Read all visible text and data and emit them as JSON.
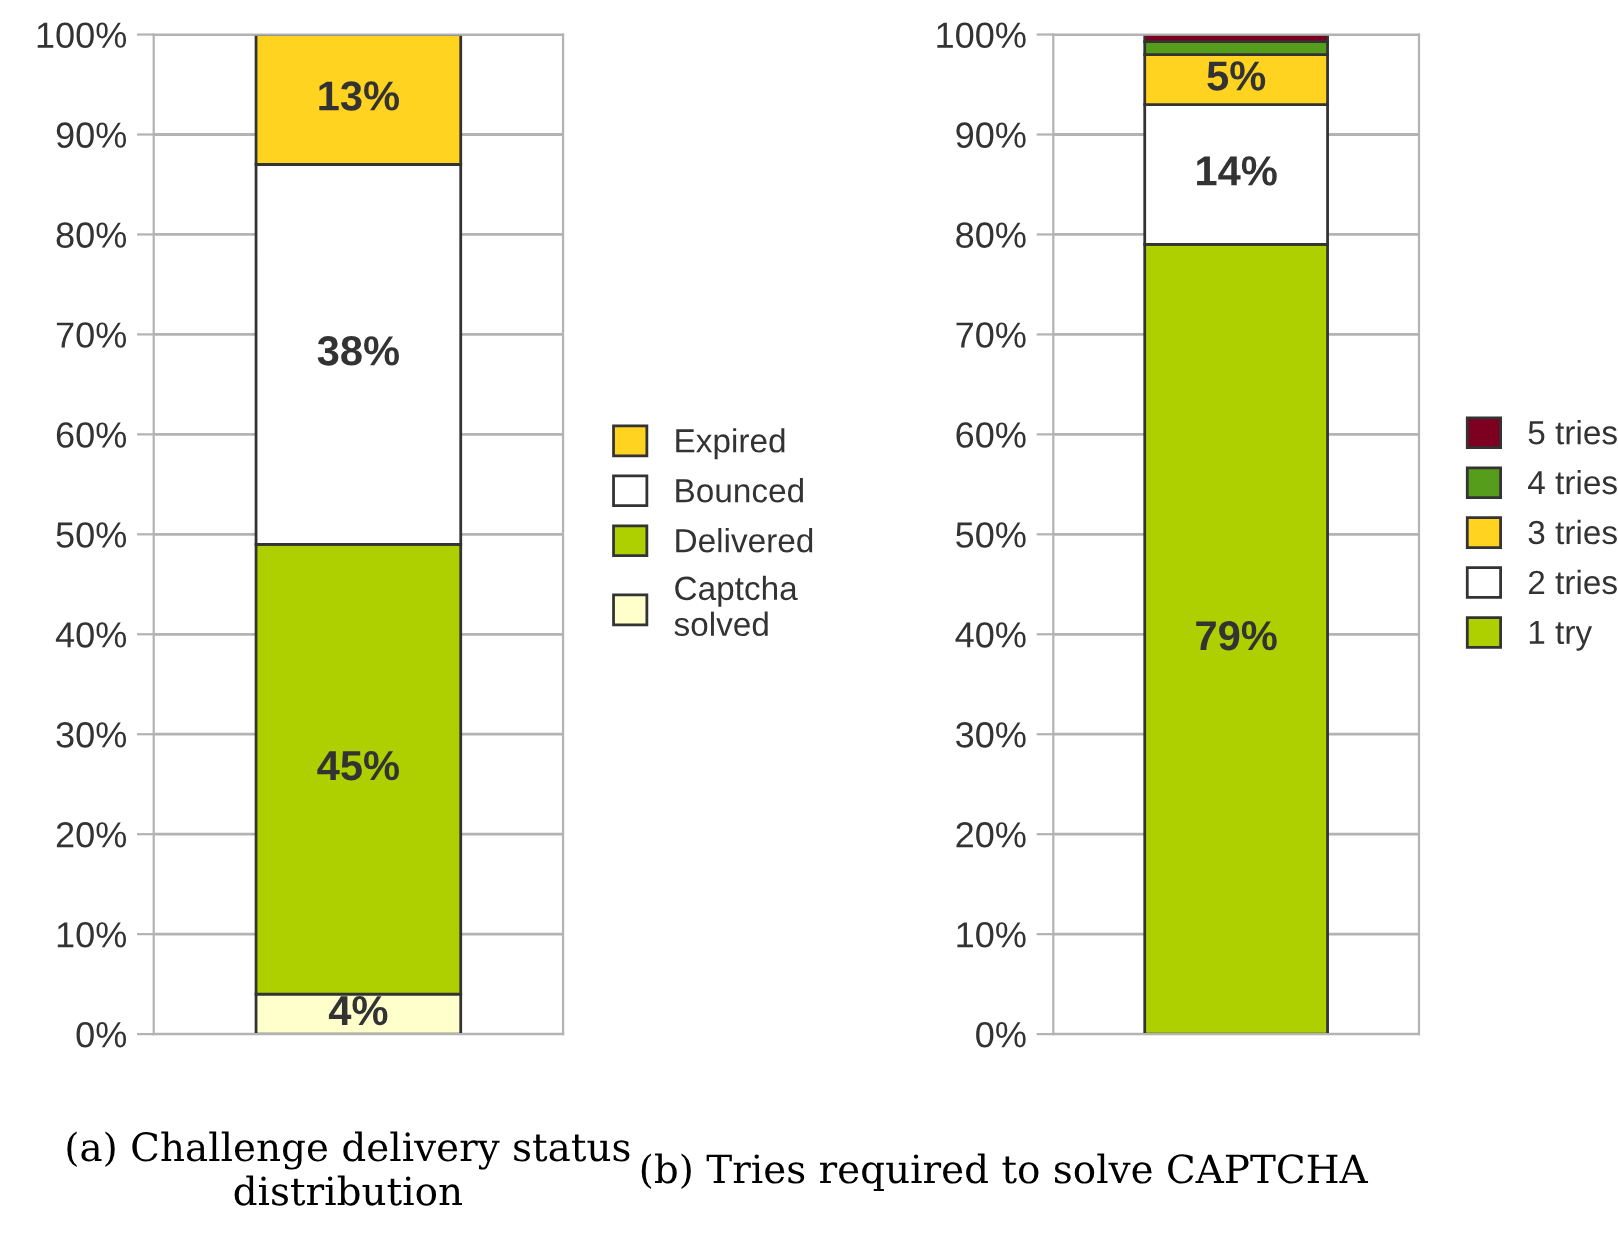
{
  "chart_data": [
    {
      "type": "bar",
      "stacked": true,
      "categories": [
        null
      ],
      "ylim": [
        0,
        100
      ],
      "yticks": [
        {
          "value": 0,
          "label": "0%"
        },
        {
          "value": 10,
          "label": "10%"
        },
        {
          "value": 20,
          "label": "20%"
        },
        {
          "value": 30,
          "label": "30%"
        },
        {
          "value": 40,
          "label": "40%"
        },
        {
          "value": 50,
          "label": "50%"
        },
        {
          "value": 60,
          "label": "60%"
        },
        {
          "value": 70,
          "label": "70%"
        },
        {
          "value": 80,
          "label": "80%"
        },
        {
          "value": 90,
          "label": "90%"
        },
        {
          "value": 100,
          "label": "100%"
        }
      ],
      "grid": "y",
      "legend": "right",
      "series": [
        {
          "name": "Captcha\nsolved",
          "color": "#ffffcc",
          "values": [
            4
          ],
          "value_labels": [
            "4%"
          ]
        },
        {
          "name": "Delivered",
          "color": "#aecf00",
          "values": [
            45
          ],
          "value_labels": [
            "45%"
          ]
        },
        {
          "name": "Bounced",
          "color": "#ffffff",
          "values": [
            38
          ],
          "value_labels": [
            "38%"
          ]
        },
        {
          "name": "Expired",
          "color": "#ffd320",
          "values": [
            13
          ],
          "value_labels": [
            "13%"
          ]
        }
      ],
      "annotations": [
        "(a) Challenge delivery status distribution"
      ]
    },
    {
      "type": "bar",
      "stacked": true,
      "categories": [
        null
      ],
      "ylim": [
        0,
        100
      ],
      "yticks": [
        {
          "value": 0,
          "label": "0%"
        },
        {
          "value": 10,
          "label": "10%"
        },
        {
          "value": 20,
          "label": "20%"
        },
        {
          "value": 30,
          "label": "30%"
        },
        {
          "value": 40,
          "label": "40%"
        },
        {
          "value": 50,
          "label": "50%"
        },
        {
          "value": 60,
          "label": "60%"
        },
        {
          "value": 70,
          "label": "70%"
        },
        {
          "value": 80,
          "label": "80%"
        },
        {
          "value": 90,
          "label": "90%"
        },
        {
          "value": 100,
          "label": "100%"
        }
      ],
      "grid": "y",
      "legend": "right",
      "series": [
        {
          "name": "1 try",
          "color": "#aecf00",
          "values": [
            79
          ],
          "value_labels": [
            "79%"
          ]
        },
        {
          "name": "2 tries",
          "color": "#ffffff",
          "values": [
            14
          ],
          "value_labels": [
            "14%"
          ]
        },
        {
          "name": "3 tries",
          "color": "#ffd320",
          "values": [
            5
          ],
          "value_labels": [
            "5%"
          ]
        },
        {
          "name": "4 tries",
          "color": "#579d1c",
          "values": [
            1.3
          ],
          "value_labels": [
            null
          ]
        },
        {
          "name": "5 tries",
          "color": "#7e0021",
          "values": [
            0.7
          ],
          "value_labels": [
            null
          ]
        }
      ],
      "annotations": [
        "(b) Tries required to solve CAPTCHA"
      ]
    }
  ]
}
